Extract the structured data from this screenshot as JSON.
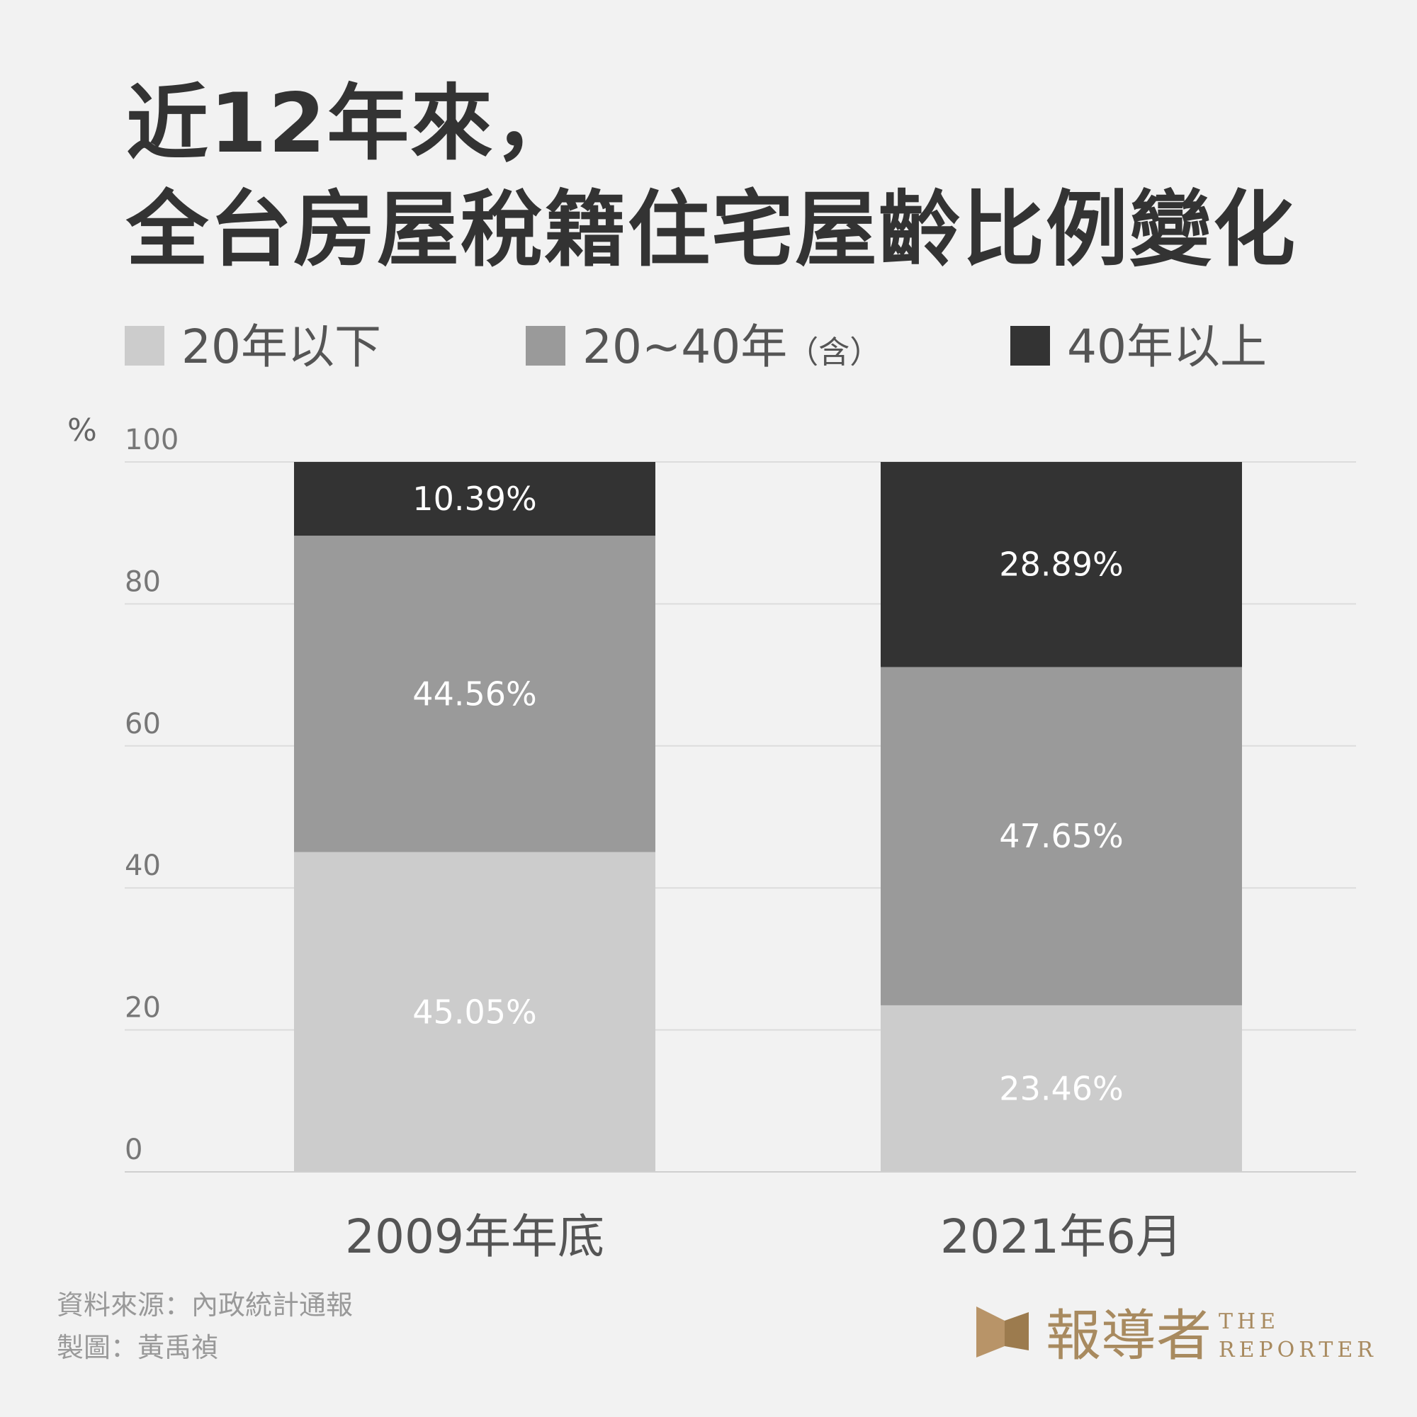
{
  "chart_data": {
    "type": "bar",
    "stacked": true,
    "title": [
      "近12年來，",
      "全台房屋稅籍住宅屋齡比例變化"
    ],
    "ylabel": "%",
    "ylim": [
      0,
      100
    ],
    "yticks": [
      "0",
      "20",
      "40",
      "60",
      "80",
      "100"
    ],
    "grid": true,
    "legend_position": "top",
    "categories": [
      "2009年年底",
      "2021年6月"
    ],
    "series": [
      {
        "name": "20年以下",
        "color": "#cccccc",
        "values": [
          45.05,
          23.46
        ],
        "labels": [
          "45.05%",
          "23.46%"
        ]
      },
      {
        "name": "20~40年",
        "name_suffix": "（含）",
        "color": "#9a9a9a",
        "values": [
          44.56,
          47.65
        ],
        "labels": [
          "44.56%",
          "47.65%"
        ]
      },
      {
        "name": "40年以上",
        "color": "#333333",
        "values": [
          10.39,
          28.89
        ],
        "labels": [
          "10.39%",
          "28.89%"
        ]
      }
    ]
  },
  "source": {
    "data_source": "資料來源：內政統計通報",
    "author": "製圖：黃禹禎"
  },
  "brand": {
    "chinese": "報導者",
    "english_1": "THE",
    "english_2": "REPORTER",
    "color": "#a88a5f"
  }
}
